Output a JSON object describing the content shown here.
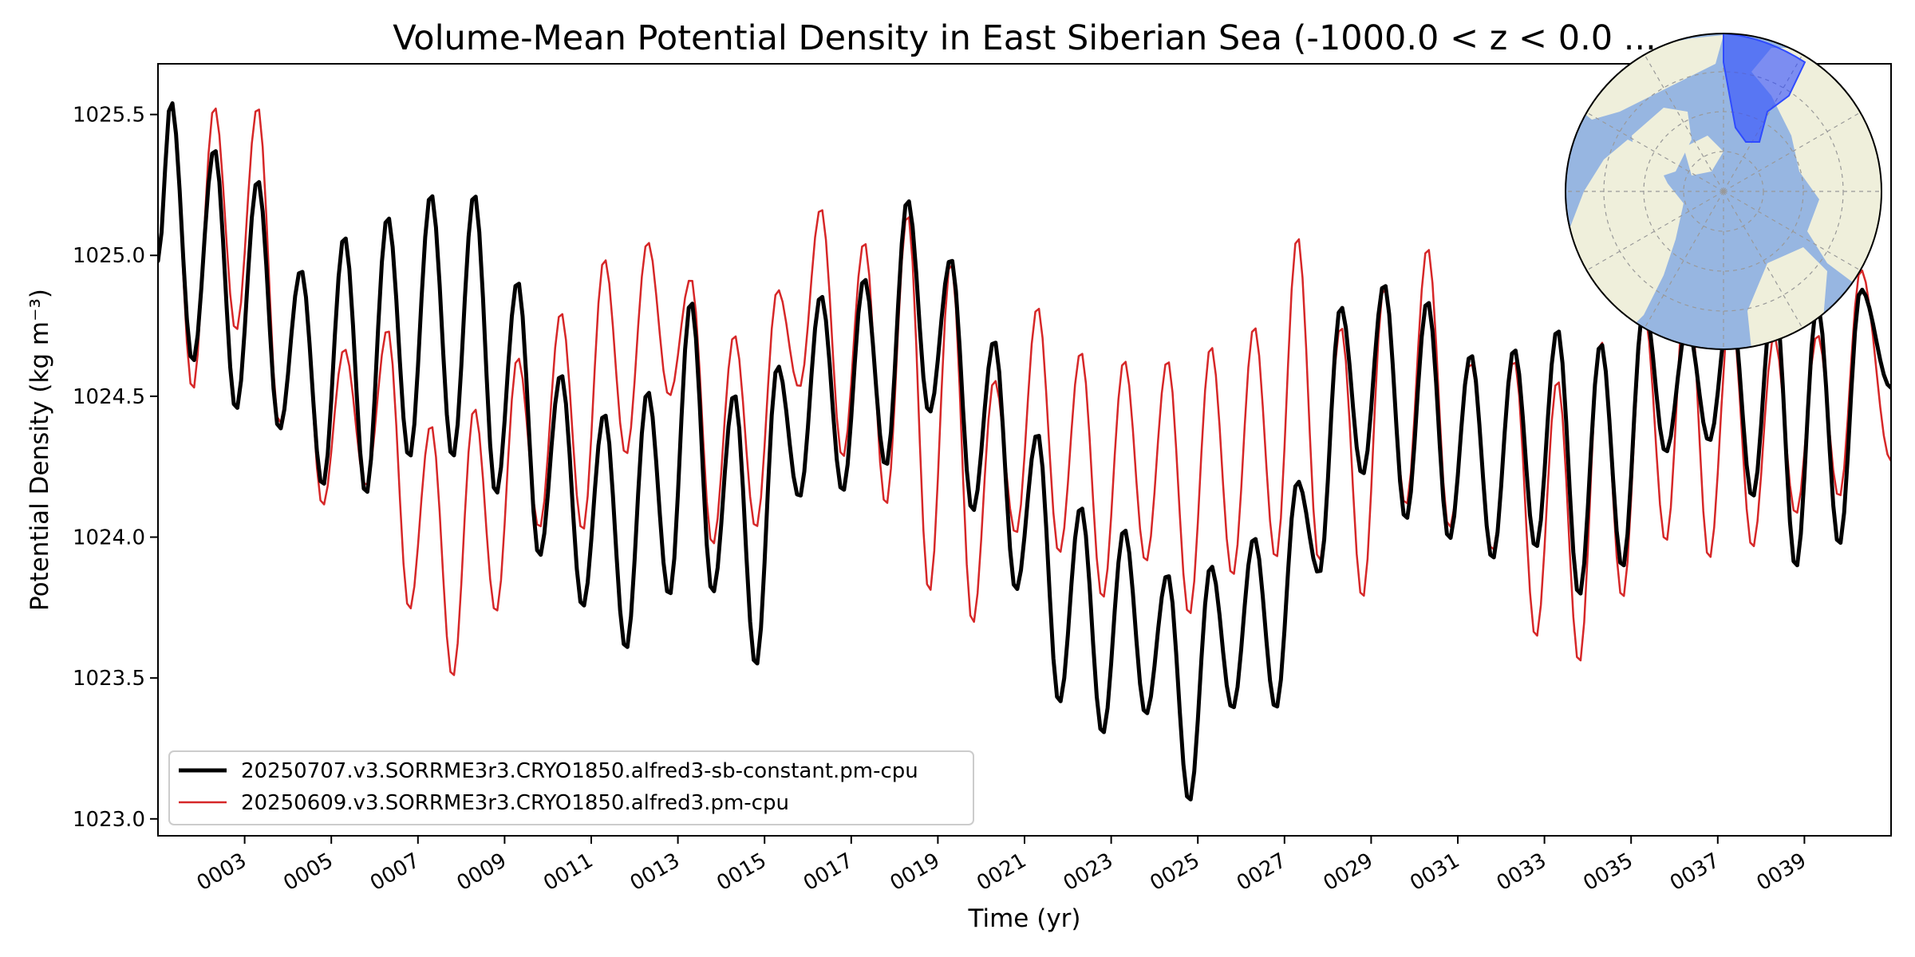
{
  "chart_data": {
    "type": "line",
    "title": "Volume-Mean Potential Density in East Siberian Sea (-1000.0 < z < 0.0 ...",
    "xlabel": "Time (yr)",
    "ylabel": "Potential Density (kg m⁻³)",
    "xlim": [
      1.0,
      41.0
    ],
    "ylim": [
      1022.94,
      1025.68
    ],
    "x_ticks": [
      3,
      5,
      7,
      9,
      11,
      13,
      15,
      17,
      19,
      21,
      23,
      25,
      27,
      29,
      31,
      33,
      35,
      37,
      39
    ],
    "x_tick_labels": [
      "0003",
      "0005",
      "0007",
      "0009",
      "0011",
      "0013",
      "0015",
      "0017",
      "0019",
      "0021",
      "0023",
      "0025",
      "0027",
      "0029",
      "0031",
      "0033",
      "0035",
      "0037",
      "0039"
    ],
    "y_ticks": [
      1023.0,
      1023.5,
      1024.0,
      1024.5,
      1025.0,
      1025.5
    ],
    "y_tick_labels": [
      "1023.0",
      "1023.5",
      "1024.0",
      "1024.5",
      "1025.0",
      "1025.5"
    ],
    "legend_position": "lower-left",
    "inset_map": "north-polar stereographic map with the East Siberian Sea region highlighted in blue",
    "series": [
      {
        "name": "20250707.v3.SORRME3r3.CRYO1850.alfred3-sb-constant.pm-cpu",
        "color": "#000000",
        "lw": 5,
        "max_x": [
          1.3,
          2.3,
          3.3,
          4.3,
          5.3,
          6.3,
          7.3,
          8.3,
          9.3,
          10.3,
          11.3,
          12.3,
          13.3,
          14.3,
          15.3,
          16.3,
          17.3,
          18.3,
          19.3,
          20.3,
          21.3,
          22.3,
          23.3,
          24.3,
          25.3,
          26.3,
          27.3,
          28.3,
          29.3,
          30.3,
          31.3,
          32.3,
          33.3,
          34.3,
          35.3,
          36.3,
          37.3,
          38.3,
          39.3,
          40.3
        ],
        "max_y": [
          1025.55,
          1025.38,
          1025.27,
          1024.95,
          1025.07,
          1025.14,
          1025.22,
          1025.22,
          1024.91,
          1024.58,
          1024.44,
          1024.52,
          1024.84,
          1024.51,
          1024.61,
          1024.86,
          1024.92,
          1025.2,
          1024.99,
          1024.7,
          1024.37,
          1024.11,
          1024.03,
          1023.87,
          1023.9,
          1024.0,
          1024.2,
          1024.82,
          1024.9,
          1024.84,
          1024.65,
          1024.67,
          1024.74,
          1024.69,
          1024.83,
          1024.75,
          1024.84,
          1024.88,
          1024.83,
          1024.88
        ],
        "min_x": [
          1.0,
          1.8,
          2.8,
          3.8,
          4.8,
          5.8,
          6.8,
          7.8,
          8.8,
          9.8,
          10.8,
          11.8,
          12.8,
          13.8,
          14.8,
          15.8,
          16.8,
          17.8,
          18.8,
          19.8,
          20.8,
          21.8,
          22.8,
          23.8,
          24.8,
          25.8,
          26.8,
          27.8,
          28.8,
          29.8,
          30.8,
          31.8,
          32.8,
          33.8,
          34.8,
          35.8,
          36.8,
          37.8,
          38.8,
          39.8,
          41.0
        ],
        "min_y": [
          1024.98,
          1024.62,
          1024.45,
          1024.38,
          1024.18,
          1024.15,
          1024.28,
          1024.28,
          1024.15,
          1023.93,
          1023.75,
          1023.6,
          1023.79,
          1023.8,
          1023.54,
          1024.14,
          1024.16,
          1024.25,
          1024.44,
          1024.09,
          1023.81,
          1023.41,
          1023.3,
          1023.37,
          1023.06,
          1023.39,
          1023.39,
          1023.87,
          1024.22,
          1024.06,
          1023.99,
          1023.92,
          1023.96,
          1023.79,
          1023.89,
          1024.3,
          1024.34,
          1024.14,
          1023.89,
          1023.97,
          1024.53
        ]
      },
      {
        "name": "20250609.v3.SORRME3r3.CRYO1850.alfred3.pm-cpu",
        "color": "#d62728",
        "lw": 2.5,
        "max_x": [
          1.3,
          2.3,
          3.3,
          4.3,
          5.3,
          6.3,
          7.3,
          8.3,
          9.3,
          10.3,
          11.3,
          12.3,
          13.3,
          14.3,
          15.3,
          16.3,
          17.3,
          18.3,
          19.3,
          20.3,
          21.3,
          22.3,
          23.3,
          24.3,
          25.3,
          26.3,
          27.3,
          28.3,
          29.3,
          30.3,
          31.3,
          32.3,
          33.3,
          34.3,
          35.3,
          36.3,
          37.3,
          38.3,
          39.3,
          40.3
        ],
        "max_y": [
          1025.55,
          1025.53,
          1025.53,
          1024.95,
          1024.67,
          1024.74,
          1024.4,
          1024.46,
          1024.64,
          1024.8,
          1024.99,
          1025.05,
          1024.92,
          1024.72,
          1024.88,
          1025.17,
          1025.05,
          1025.15,
          1024.98,
          1024.56,
          1024.82,
          1024.66,
          1024.63,
          1024.63,
          1024.68,
          1024.75,
          1025.07,
          1024.75,
          1024.89,
          1025.03,
          1024.62,
          1024.63,
          1024.56,
          1024.7,
          1024.8,
          1024.96,
          1024.81,
          1024.71,
          1024.72,
          1024.95
        ],
        "min_x": [
          1.0,
          1.8,
          2.8,
          3.8,
          4.8,
          5.8,
          6.8,
          7.8,
          8.8,
          9.8,
          10.8,
          11.8,
          12.8,
          13.8,
          14.8,
          15.8,
          16.8,
          17.8,
          18.8,
          19.8,
          20.8,
          21.8,
          22.8,
          23.8,
          24.8,
          25.8,
          26.8,
          27.8,
          28.8,
          29.8,
          30.8,
          31.8,
          32.8,
          33.8,
          34.8,
          35.8,
          36.8,
          37.8,
          38.8,
          39.8,
          41.0
        ],
        "min_y": [
          1024.98,
          1024.52,
          1024.73,
          1024.4,
          1024.11,
          1024.18,
          1023.74,
          1023.5,
          1023.73,
          1024.03,
          1024.02,
          1024.29,
          1024.5,
          1023.97,
          1024.03,
          1024.53,
          1024.28,
          1024.11,
          1023.8,
          1023.69,
          1024.01,
          1023.94,
          1023.78,
          1023.91,
          1023.72,
          1023.86,
          1023.92,
          1023.91,
          1023.78,
          1024.11,
          1024.03,
          1023.95,
          1023.64,
          1023.55,
          1023.78,
          1023.98,
          1023.92,
          1023.96,
          1024.08,
          1024.14,
          1024.27
        ]
      }
    ]
  },
  "map_colors": {
    "ocean": "#97b6e1",
    "land": "#efefdb",
    "highlight": "#2f4bff",
    "grid": "#999999"
  }
}
